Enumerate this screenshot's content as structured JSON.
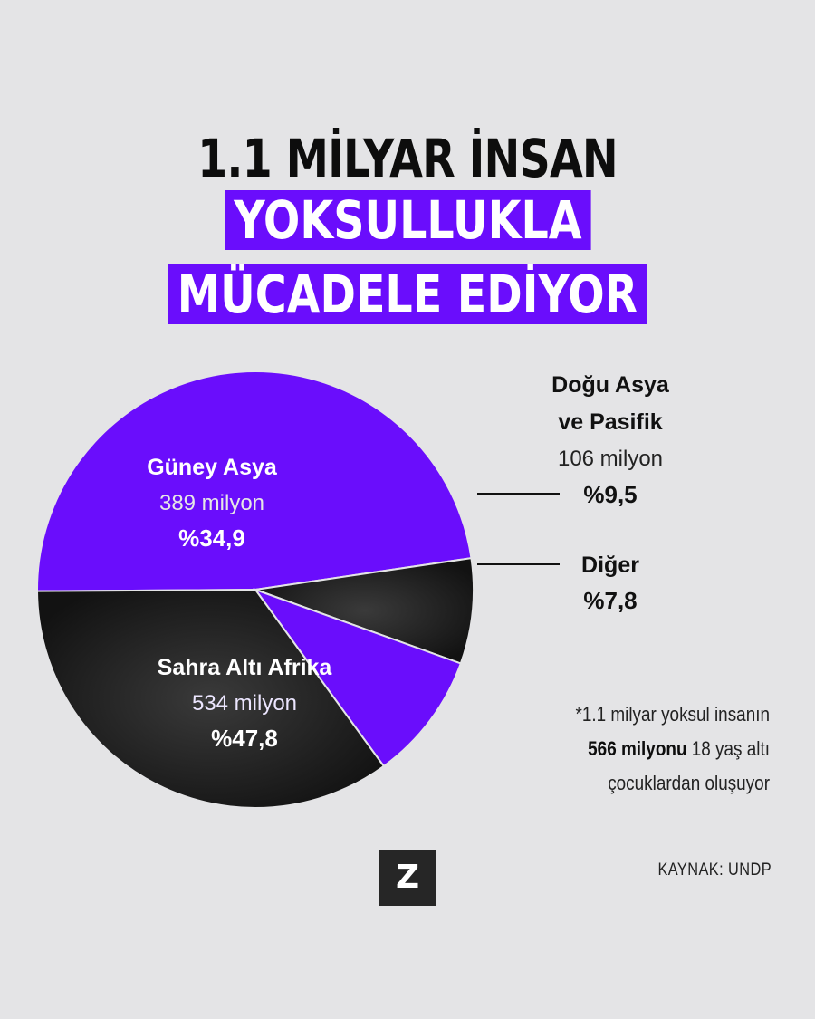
{
  "title": {
    "line1": "1.1 MİLYAR İNSAN",
    "line2": "YOKSULLUKLA",
    "line3": "MÜCADELE EDİYOR"
  },
  "chart_data": {
    "type": "pie",
    "title": "1.1 MİLYAR İNSAN YOKSULLUKLA MÜCADELE EDİYOR",
    "slices": [
      {
        "name": "Sahra Altı Afrika",
        "count": "534 milyon",
        "label": "%47,8",
        "value": 47.8,
        "color": "#6a0dfc"
      },
      {
        "name": "Güney Asya",
        "count": "389 milyon",
        "label": "%34,9",
        "value": 34.9,
        "color": "#1a1a1a"
      },
      {
        "name": "Doğu Asya ve Pasifik",
        "name_lines": [
          "Doğu Asya",
          "ve Pasifik"
        ],
        "count": "106 milyon",
        "label": "%9,5",
        "value": 9.5,
        "color": "#6a0dfc"
      },
      {
        "name": "Diğer",
        "count": "",
        "label": "%7,8",
        "value": 7.8,
        "color": "#1a1a1a"
      }
    ]
  },
  "note": {
    "line1": "*1.1 milyar yoksul insanın",
    "line2_bold": "566 milyonu",
    "line2_rest": " 18 yaş altı",
    "line3": "çocuklardan oluşuyor"
  },
  "logo": "Z",
  "source": "KAYNAK: UNDP"
}
